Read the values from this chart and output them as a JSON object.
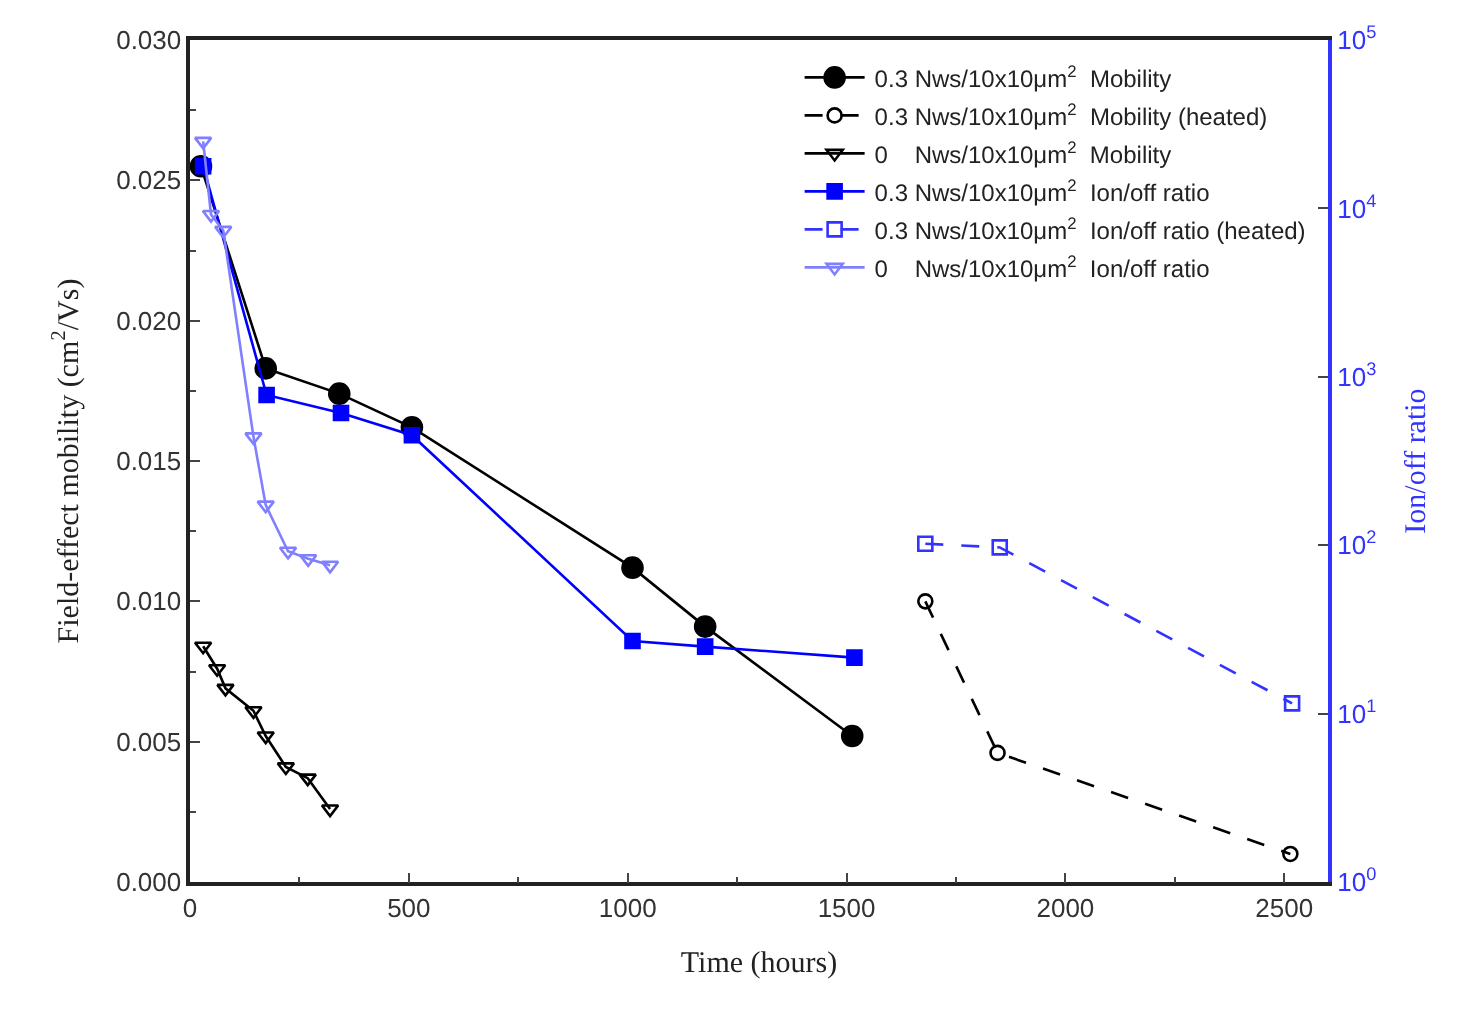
{
  "chart_data": {
    "type": "line",
    "xlabel": "Time (hours)",
    "ylabel": "Field-effect mobility (cm$^{2}$/Vs)",
    "y2label": "Ion/off ratio",
    "xlim": [
      0,
      2600
    ],
    "xticks": [
      0,
      500,
      1000,
      1500,
      2000,
      2500
    ],
    "ylim": [
      0,
      0.03
    ],
    "yticks": [
      {
        "value": 0,
        "label": "0.000"
      },
      {
        "value": 0.005,
        "label": "0.005"
      },
      {
        "value": 0.01,
        "label": "0.010"
      },
      {
        "value": 0.015,
        "label": "0.015"
      },
      {
        "value": 0.02,
        "label": "0.020"
      },
      {
        "value": 0.025,
        "label": "0.025"
      },
      {
        "value": 0.03,
        "label": "0.030"
      }
    ],
    "y2lim": [
      1,
      100000
    ],
    "y2ticks": [
      {
        "value": 1,
        "label": "10$^{0}$"
      },
      {
        "value": 10,
        "label": "10$^{1}$"
      },
      {
        "value": 100,
        "label": "10$^{2}$"
      },
      {
        "value": 1000,
        "label": "10$^{3}$"
      },
      {
        "value": 10000,
        "label": "10$^{4}$"
      },
      {
        "value": 100000,
        "label": "10$^{5}$"
      }
    ],
    "log": "y2",
    "legend": "top right",
    "series": [
      {
        "name": "0.3 Nws/10x10μm$^{2}$  Mobility",
        "color": "#000000",
        "marker": "circle",
        "line_style": "solid",
        "x": [
          25,
          173,
          341,
          507,
          1011,
          1177,
          1513
        ],
        "values": [
          0.0255,
          0.0183,
          0.0174,
          0.0162,
          0.0112,
          0.0091,
          0.0052
        ]
      },
      {
        "name": "0.3 Nws/10x10μm$^{2}$  Mobility (heated)",
        "color": "#000000",
        "marker": "circle-open",
        "line_style": "dashed",
        "x": [
          1680,
          1845,
          2514
        ],
        "values": [
          0.01,
          0.0046,
          0.001
        ]
      },
      {
        "name": "0    Nws/10x10μm$^{2}$  Mobility",
        "color": "#000000",
        "marker": "triangle-open",
        "line_style": "solid",
        "x": [
          30,
          62,
          81,
          145,
          173,
          219,
          269,
          320
        ],
        "values": [
          0.0084,
          0.0076,
          0.0069,
          0.0061,
          0.0052,
          0.0041,
          0.0037,
          0.0026
        ]
      },
      {
        "name": "0.3 Nws/10x10μm$^{2}$  Ion/off ratio",
        "color": "#0000ff",
        "marker": "square",
        "line_style": "solid",
        "axis": "y2",
        "x": [
          30,
          175,
          345,
          507,
          1011,
          1177,
          1518
        ],
        "values": [
          17800,
          780,
          610,
          450,
          27,
          25,
          21.5
        ]
      },
      {
        "name": "0.3 Nws/10x10μm$^{2}$  Ion/off ratio (heated)",
        "color": "#3333ff",
        "marker": "square-open",
        "line_style": "dashed",
        "axis": "y2",
        "x": [
          1680,
          1850,
          2518
        ],
        "values": [
          102,
          97,
          11.5
        ]
      },
      {
        "name": "0    Nws/10x10μm$^{2}$  Ion/off ratio",
        "color": "#7f7fff",
        "marker": "triangle-open",
        "line_style": "solid",
        "axis": "y2",
        "x": [
          30,
          48,
          76,
          145,
          173,
          224,
          270,
          320
        ],
        "values": [
          25000,
          9200,
          7400,
          440,
          173,
          92,
          83,
          76
        ]
      }
    ]
  }
}
